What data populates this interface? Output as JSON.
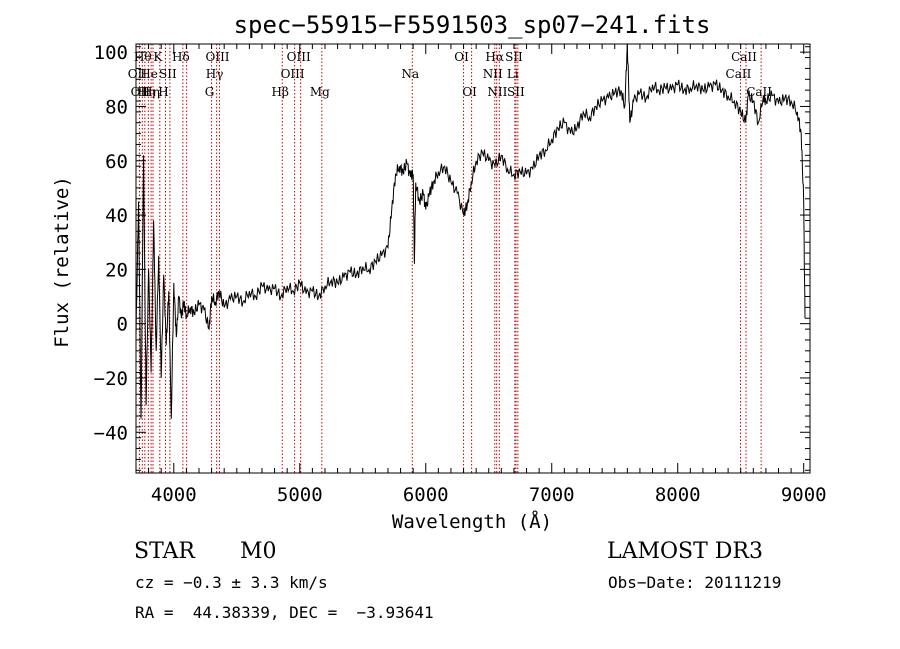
{
  "chart_data": {
    "type": "line",
    "title": "spec−55915−F5591503_sp07−241.fits",
    "xlabel": "Wavelength (Å)",
    "ylabel": "Flux (relative)",
    "xlim": [
      3700,
      9050
    ],
    "ylim": [
      -55,
      103
    ],
    "xticks": [
      4000,
      5000,
      6000,
      7000,
      8000,
      9000
    ],
    "yticks": [
      -40,
      -20,
      0,
      20,
      40,
      60,
      80,
      100
    ],
    "ytick_labels": [
      "−40",
      "−20",
      "0",
      "20",
      "40",
      "60",
      "80",
      "100"
    ],
    "series": [
      {
        "name": "flux",
        "color": "#000000",
        "points": [
          [
            3700,
            -5
          ],
          [
            3720,
            45
          ],
          [
            3740,
            -35
          ],
          [
            3760,
            62
          ],
          [
            3780,
            -30
          ],
          [
            3800,
            20
          ],
          [
            3820,
            -18
          ],
          [
            3840,
            38
          ],
          [
            3860,
            -10
          ],
          [
            3880,
            25
          ],
          [
            3900,
            -20
          ],
          [
            3920,
            18
          ],
          [
            3940,
            -8
          ],
          [
            3960,
            12
          ],
          [
            3980,
            -35
          ],
          [
            4000,
            15
          ],
          [
            4020,
            -5
          ],
          [
            4040,
            10
          ],
          [
            4060,
            2
          ],
          [
            4080,
            8
          ],
          [
            4100,
            3
          ],
          [
            4130,
            6
          ],
          [
            4160,
            4
          ],
          [
            4200,
            7
          ],
          [
            4240,
            5
          ],
          [
            4280,
            -2
          ],
          [
            4300,
            10
          ],
          [
            4330,
            8
          ],
          [
            4360,
            12
          ],
          [
            4400,
            6
          ],
          [
            4450,
            9
          ],
          [
            4500,
            10
          ],
          [
            4550,
            8
          ],
          [
            4600,
            12
          ],
          [
            4650,
            10
          ],
          [
            4700,
            14
          ],
          [
            4750,
            12
          ],
          [
            4800,
            13
          ],
          [
            4850,
            10
          ],
          [
            4900,
            14
          ],
          [
            4950,
            12
          ],
          [
            5000,
            15
          ],
          [
            5050,
            11
          ],
          [
            5100,
            12
          ],
          [
            5150,
            10
          ],
          [
            5200,
            14
          ],
          [
            5250,
            16
          ],
          [
            5300,
            15
          ],
          [
            5350,
            17
          ],
          [
            5400,
            19
          ],
          [
            5450,
            18
          ],
          [
            5500,
            21
          ],
          [
            5550,
            20
          ],
          [
            5600,
            23
          ],
          [
            5650,
            25
          ],
          [
            5700,
            28
          ],
          [
            5730,
            42
          ],
          [
            5760,
            55
          ],
          [
            5790,
            58
          ],
          [
            5820,
            56
          ],
          [
            5850,
            59
          ],
          [
            5880,
            54
          ],
          [
            5900,
            55
          ],
          [
            5910,
            22
          ],
          [
            5920,
            52
          ],
          [
            5950,
            45
          ],
          [
            5980,
            48
          ],
          [
            6000,
            42
          ],
          [
            6030,
            48
          ],
          [
            6060,
            52
          ],
          [
            6100,
            56
          ],
          [
            6150,
            58
          ],
          [
            6200,
            52
          ],
          [
            6250,
            48
          ],
          [
            6300,
            40
          ],
          [
            6330,
            44
          ],
          [
            6360,
            52
          ],
          [
            6400,
            60
          ],
          [
            6450,
            63
          ],
          [
            6500,
            60
          ],
          [
            6550,
            58
          ],
          [
            6600,
            62
          ],
          [
            6650,
            57
          ],
          [
            6700,
            55
          ],
          [
            6750,
            56
          ],
          [
            6800,
            55
          ],
          [
            6850,
            57
          ],
          [
            6900,
            62
          ],
          [
            6950,
            64
          ],
          [
            7000,
            68
          ],
          [
            7050,
            72
          ],
          [
            7100,
            74
          ],
          [
            7150,
            70
          ],
          [
            7200,
            72
          ],
          [
            7250,
            78
          ],
          [
            7300,
            76
          ],
          [
            7350,
            80
          ],
          [
            7400,
            82
          ],
          [
            7450,
            83
          ],
          [
            7500,
            85
          ],
          [
            7550,
            86
          ],
          [
            7580,
            80
          ],
          [
            7600,
            103
          ],
          [
            7620,
            74
          ],
          [
            7650,
            82
          ],
          [
            7700,
            85
          ],
          [
            7750,
            83
          ],
          [
            7800,
            88
          ],
          [
            7850,
            86
          ],
          [
            7900,
            87
          ],
          [
            7950,
            86
          ],
          [
            8000,
            88
          ],
          [
            8050,
            86
          ],
          [
            8100,
            87
          ],
          [
            8150,
            88
          ],
          [
            8200,
            86
          ],
          [
            8250,
            87
          ],
          [
            8300,
            88
          ],
          [
            8350,
            86
          ],
          [
            8400,
            84
          ],
          [
            8450,
            82
          ],
          [
            8500,
            78
          ],
          [
            8540,
            74
          ],
          [
            8560,
            84
          ],
          [
            8600,
            82
          ],
          [
            8640,
            74
          ],
          [
            8680,
            84
          ],
          [
            8700,
            82
          ],
          [
            8750,
            84
          ],
          [
            8800,
            81
          ],
          [
            8850,
            83
          ],
          [
            8900,
            82
          ],
          [
            8950,
            78
          ],
          [
            8980,
            70
          ],
          [
            9000,
            45
          ],
          [
            9010,
            2
          ]
        ]
      }
    ],
    "spectral_lines": [
      {
        "wavelength": 3727,
        "labels": [
          [
            "O",
            "II"
          ]
        ],
        "row": 1
      },
      {
        "wavelength": 3750,
        "labels": [
          [
            "O",
            "II"
          ]
        ],
        "row": 2
      },
      {
        "wavelength": 3770,
        "labels": [
          [
            "H",
            "θ"
          ]
        ],
        "row": 0
      },
      {
        "wavelength": 3798,
        "labels": [
          [
            "H",
            "η"
          ]
        ],
        "row": 2
      },
      {
        "wavelength": 3820,
        "labels": [
          [
            "He",
            ""
          ]
        ],
        "row": 1
      },
      {
        "wavelength": 3835,
        "labels": [
          [
            "H",
            "η"
          ]
        ],
        "row": 2
      },
      {
        "wavelength": 3889,
        "labels": [
          [
            "K",
            ""
          ]
        ],
        "row": 0
      },
      {
        "wavelength": 3934,
        "labels": [
          [
            "H",
            ""
          ]
        ],
        "row": 2
      },
      {
        "wavelength": 3969,
        "labels": [
          [
            "S",
            "II"
          ]
        ],
        "row": 1
      },
      {
        "wavelength": 4072,
        "labels": [
          [
            "H",
            "δ"
          ]
        ],
        "row": 0
      },
      {
        "wavelength": 4102,
        "labels": [],
        "row": 0
      },
      {
        "wavelength": 4300,
        "labels": [
          [
            "G",
            ""
          ]
        ],
        "row": 2
      },
      {
        "wavelength": 4340,
        "labels": [
          [
            "H",
            "γ"
          ]
        ],
        "row": 1
      },
      {
        "wavelength": 4363,
        "labels": [
          [
            "O",
            "III"
          ]
        ],
        "row": 0
      },
      {
        "wavelength": 4861,
        "labels": [
          [
            "H",
            "β"
          ]
        ],
        "row": 2
      },
      {
        "wavelength": 4959,
        "labels": [
          [
            "O",
            "III"
          ]
        ],
        "row": 1
      },
      {
        "wavelength": 5007,
        "labels": [
          [
            "O",
            "III"
          ]
        ],
        "row": 0
      },
      {
        "wavelength": 5175,
        "labels": [
          [
            "Mg",
            ""
          ]
        ],
        "row": 2
      },
      {
        "wavelength": 5893,
        "labels": [
          [
            "Na",
            ""
          ]
        ],
        "row": 1
      },
      {
        "wavelength": 6300,
        "labels": [
          [
            "O",
            "I"
          ]
        ],
        "row": 0
      },
      {
        "wavelength": 6364,
        "labels": [
          [
            "O",
            "I"
          ]
        ],
        "row": 2
      },
      {
        "wavelength": 6548,
        "labels": [
          [
            "N",
            "II"
          ]
        ],
        "row": 1
      },
      {
        "wavelength": 6563,
        "labels": [
          [
            "H",
            "α"
          ]
        ],
        "row": 0
      },
      {
        "wavelength": 6584,
        "labels": [
          [
            "N",
            "II"
          ]
        ],
        "row": 2
      },
      {
        "wavelength": 6707,
        "labels": [
          [
            "Li",
            ""
          ]
        ],
        "row": 1
      },
      {
        "wavelength": 6716,
        "labels": [
          [
            "S",
            "II"
          ]
        ],
        "row": 0
      },
      {
        "wavelength": 6731,
        "labels": [
          [
            "S",
            "II"
          ]
        ],
        "row": 2
      },
      {
        "wavelength": 8498,
        "labels": [
          [
            "Ca",
            "II"
          ]
        ],
        "row": 1
      },
      {
        "wavelength": 8542,
        "labels": [
          [
            "Ca",
            "II"
          ]
        ],
        "row": 0
      },
      {
        "wavelength": 8662,
        "labels": [
          [
            "Ca",
            "II"
          ]
        ],
        "row": 2
      }
    ],
    "line_color": "#cc0000"
  },
  "info": {
    "object_type": "STAR",
    "subclass": "M0",
    "survey": "LAMOST DR3",
    "cz": "cz = −0.3 ± 3.3 km/s",
    "obs_date": "Obs−Date: 20111219",
    "radec": "RA =  44.38339, DEC =  −3.93641"
  }
}
